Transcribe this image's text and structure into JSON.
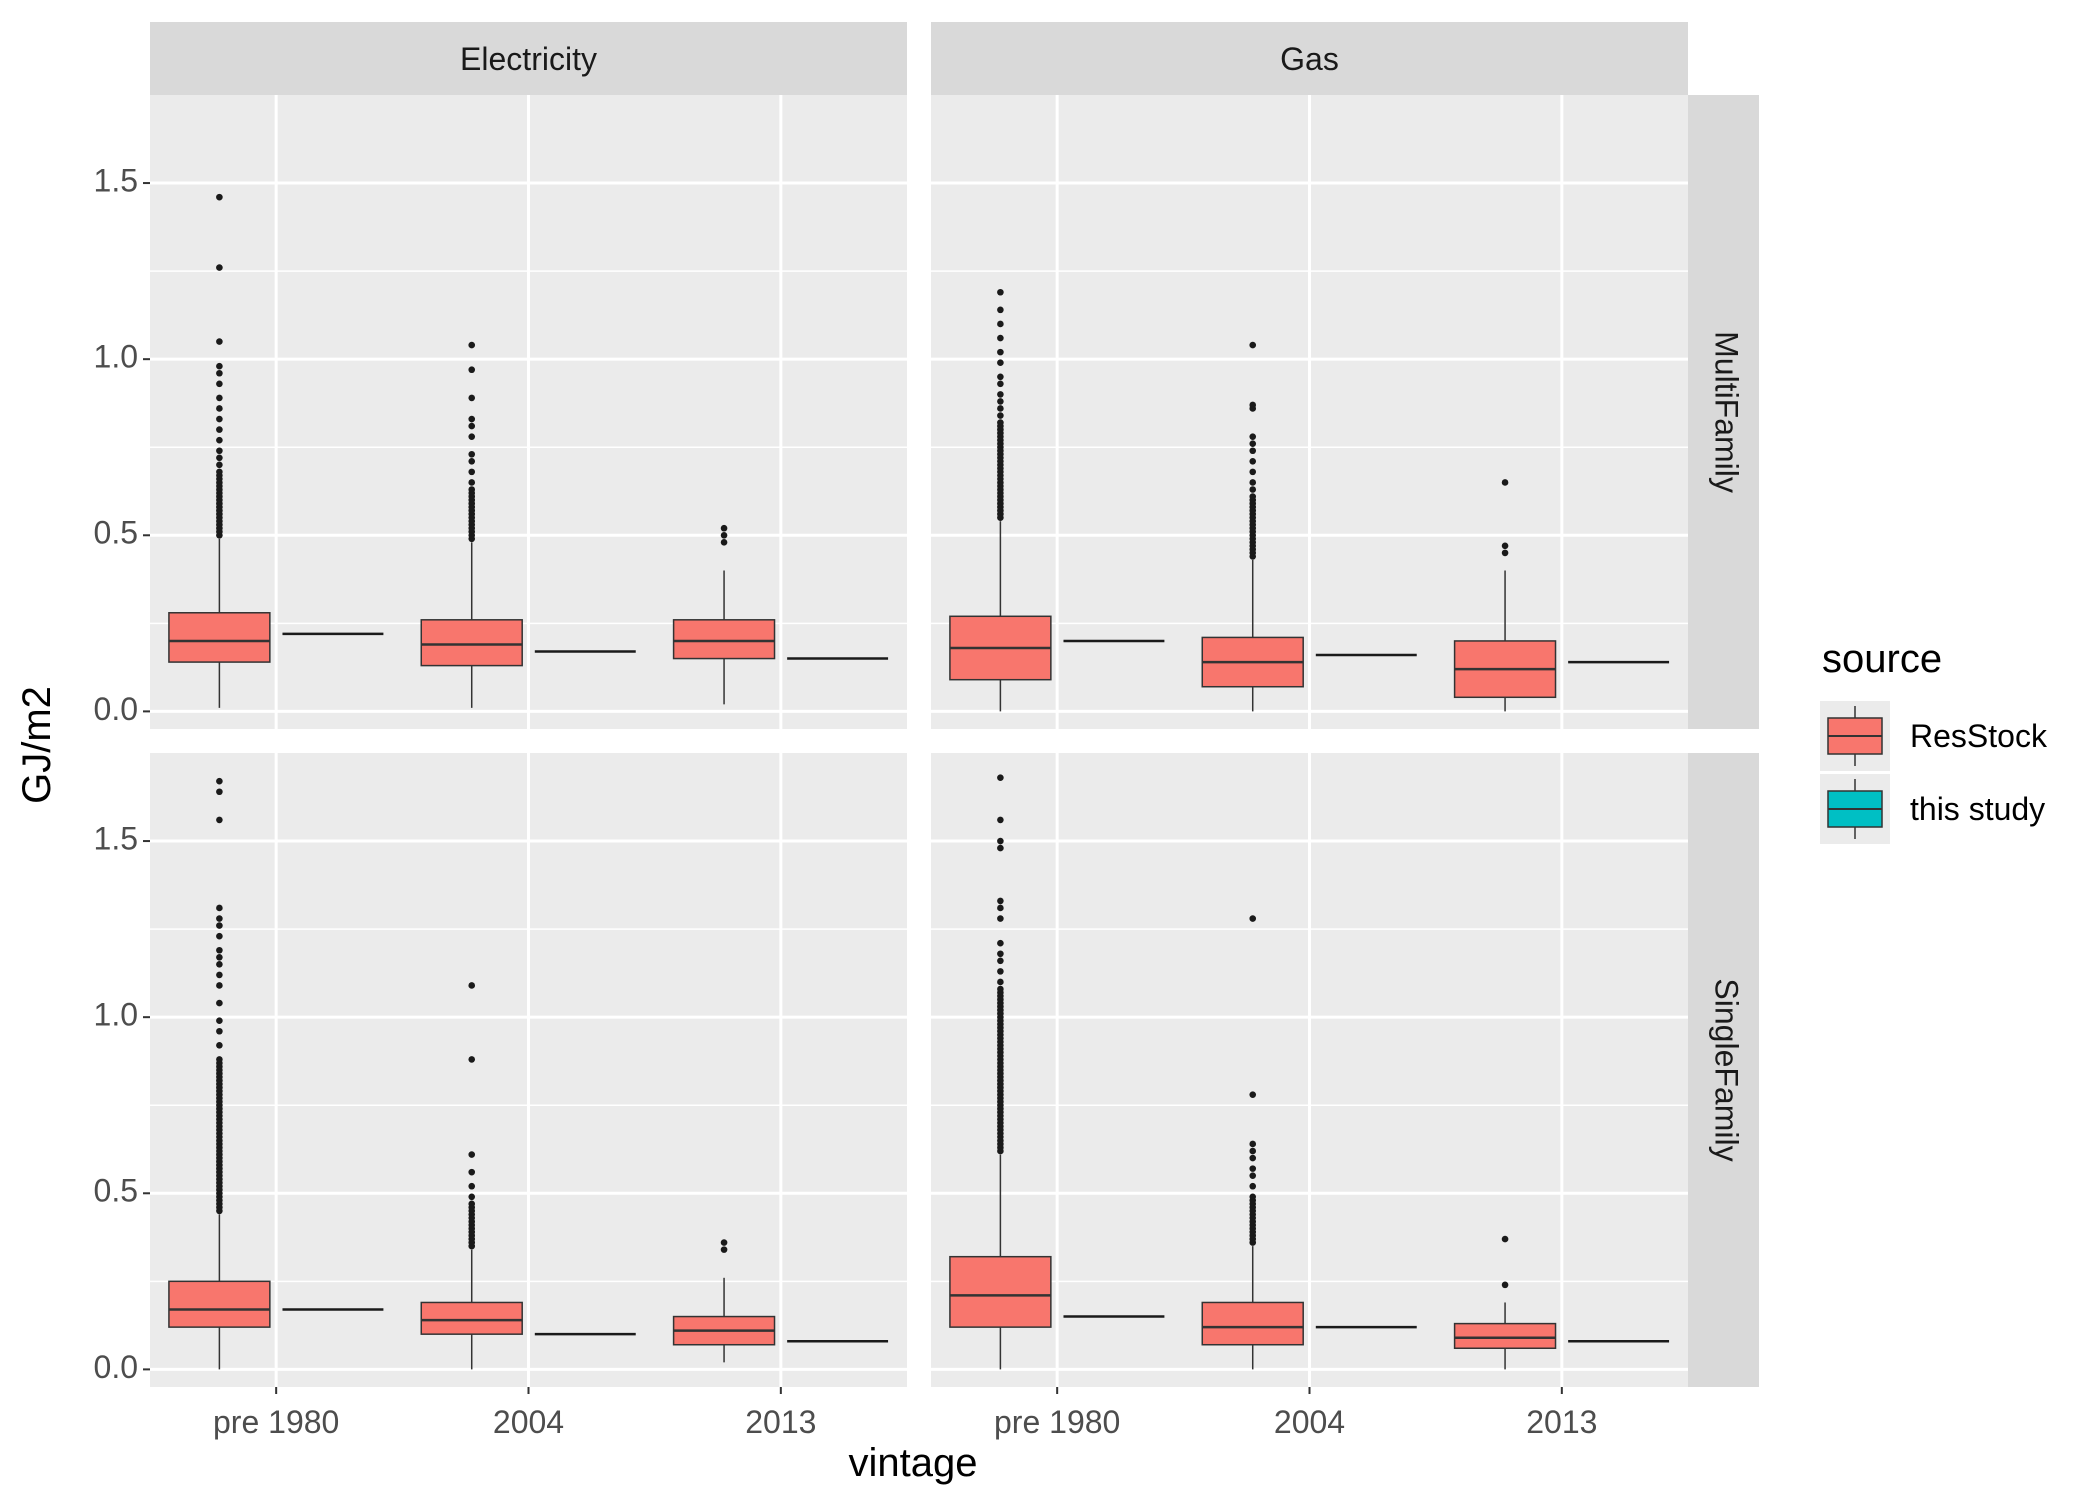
{
  "chart_data": {
    "type": "boxplot",
    "xlabel": "vintage",
    "ylabel": "GJ/m2",
    "ylim": [
      -0.05,
      1.75
    ],
    "yticks": [
      0.0,
      0.5,
      1.0,
      1.5
    ],
    "ytick_labels": [
      "0.0",
      "0.5",
      "1.0",
      "1.5"
    ],
    "categories": [
      "pre 1980",
      "2004",
      "2013"
    ],
    "facet_cols": [
      "Electricity",
      "Gas"
    ],
    "facet_rows": [
      "MultiFamily",
      "SingleFamily"
    ],
    "grid": true,
    "legend": {
      "title": "source",
      "position": "right",
      "entries": [
        {
          "label": "ResStock",
          "color": "#F8766D"
        },
        {
          "label": "this study",
          "color": "#00BFC4"
        }
      ]
    },
    "series": [
      {
        "name": "ResStock",
        "color": "#F8766D"
      },
      {
        "name": "this study",
        "color": "#00BFC4"
      }
    ],
    "panels": [
      {
        "col": "Electricity",
        "row": "MultiFamily",
        "resstock": [
          {
            "category": "pre 1980",
            "lower": 0.01,
            "q1": 0.14,
            "median": 0.2,
            "q3": 0.28,
            "upper": 0.49,
            "outliers": [
              0.5,
              0.51,
              0.52,
              0.53,
              0.54,
              0.55,
              0.56,
              0.57,
              0.58,
              0.59,
              0.6,
              0.61,
              0.62,
              0.63,
              0.64,
              0.65,
              0.66,
              0.67,
              0.68,
              0.7,
              0.72,
              0.74,
              0.77,
              0.8,
              0.83,
              0.86,
              0.89,
              0.93,
              0.96,
              0.98,
              1.05,
              1.26,
              1.46
            ]
          },
          {
            "category": "2004",
            "lower": 0.01,
            "q1": 0.13,
            "median": 0.19,
            "q3": 0.26,
            "upper": 0.48,
            "outliers": [
              0.49,
              0.5,
              0.51,
              0.52,
              0.53,
              0.54,
              0.55,
              0.56,
              0.57,
              0.58,
              0.59,
              0.6,
              0.61,
              0.62,
              0.63,
              0.65,
              0.68,
              0.71,
              0.73,
              0.78,
              0.81,
              0.83,
              0.89,
              0.97,
              1.04
            ]
          },
          {
            "category": "2013",
            "lower": 0.02,
            "q1": 0.15,
            "median": 0.2,
            "q3": 0.26,
            "upper": 0.4,
            "outliers": [
              0.48,
              0.5,
              0.52
            ]
          }
        ],
        "this_study": [
          {
            "category": "pre 1980",
            "value": 0.22
          },
          {
            "category": "2004",
            "value": 0.17
          },
          {
            "category": "2013",
            "value": 0.15
          }
        ]
      },
      {
        "col": "Gas",
        "row": "MultiFamily",
        "resstock": [
          {
            "category": "pre 1980",
            "lower": 0.0,
            "q1": 0.09,
            "median": 0.18,
            "q3": 0.27,
            "upper": 0.54,
            "outliers": [
              0.55,
              0.56,
              0.57,
              0.58,
              0.59,
              0.6,
              0.61,
              0.62,
              0.63,
              0.64,
              0.65,
              0.66,
              0.67,
              0.68,
              0.69,
              0.7,
              0.71,
              0.72,
              0.73,
              0.74,
              0.75,
              0.76,
              0.77,
              0.78,
              0.79,
              0.8,
              0.81,
              0.82,
              0.84,
              0.86,
              0.88,
              0.9,
              0.93,
              0.95,
              0.99,
              1.02,
              1.06,
              1.1,
              1.14,
              1.19
            ]
          },
          {
            "category": "2004",
            "lower": 0.0,
            "q1": 0.07,
            "median": 0.14,
            "q3": 0.21,
            "upper": 0.43,
            "outliers": [
              0.44,
              0.45,
              0.46,
              0.47,
              0.48,
              0.49,
              0.5,
              0.51,
              0.52,
              0.53,
              0.54,
              0.55,
              0.56,
              0.57,
              0.58,
              0.59,
              0.6,
              0.61,
              0.63,
              0.65,
              0.68,
              0.71,
              0.74,
              0.76,
              0.78,
              0.86,
              0.87,
              1.04
            ]
          },
          {
            "category": "2013",
            "lower": 0.0,
            "q1": 0.04,
            "median": 0.12,
            "q3": 0.2,
            "upper": 0.4,
            "outliers": [
              0.45,
              0.47,
              0.65
            ]
          }
        ],
        "this_study": [
          {
            "category": "pre 1980",
            "value": 0.2
          },
          {
            "category": "2004",
            "value": 0.16
          },
          {
            "category": "2013",
            "value": 0.14
          }
        ]
      },
      {
        "col": "Electricity",
        "row": "SingleFamily",
        "resstock": [
          {
            "category": "pre 1980",
            "lower": 0.0,
            "q1": 0.12,
            "median": 0.17,
            "q3": 0.25,
            "upper": 0.44,
            "outliers": [
              0.45,
              0.46,
              0.47,
              0.48,
              0.49,
              0.5,
              0.51,
              0.52,
              0.53,
              0.54,
              0.55,
              0.56,
              0.57,
              0.58,
              0.59,
              0.6,
              0.61,
              0.62,
              0.63,
              0.64,
              0.65,
              0.66,
              0.67,
              0.68,
              0.69,
              0.7,
              0.71,
              0.72,
              0.73,
              0.74,
              0.75,
              0.76,
              0.77,
              0.78,
              0.79,
              0.8,
              0.81,
              0.82,
              0.83,
              0.84,
              0.85,
              0.86,
              0.87,
              0.88,
              0.92,
              0.96,
              0.99,
              1.04,
              1.09,
              1.12,
              1.15,
              1.17,
              1.19,
              1.23,
              1.26,
              1.28,
              1.31,
              1.56,
              1.64,
              1.67
            ]
          },
          {
            "category": "2004",
            "lower": 0.0,
            "q1": 0.1,
            "median": 0.14,
            "q3": 0.19,
            "upper": 0.34,
            "outliers": [
              0.35,
              0.36,
              0.37,
              0.38,
              0.39,
              0.4,
              0.41,
              0.42,
              0.43,
              0.44,
              0.45,
              0.46,
              0.47,
              0.49,
              0.52,
              0.56,
              0.61,
              0.88,
              1.09
            ]
          },
          {
            "category": "2013",
            "lower": 0.02,
            "q1": 0.07,
            "median": 0.11,
            "q3": 0.15,
            "upper": 0.26,
            "outliers": [
              0.34,
              0.36
            ]
          }
        ],
        "this_study": [
          {
            "category": "pre 1980",
            "value": 0.17
          },
          {
            "category": "2004",
            "value": 0.1
          },
          {
            "category": "2013",
            "value": 0.08
          }
        ]
      },
      {
        "col": "Gas",
        "row": "SingleFamily",
        "resstock": [
          {
            "category": "pre 1980",
            "lower": 0.0,
            "q1": 0.12,
            "median": 0.21,
            "q3": 0.32,
            "upper": 0.61,
            "outliers": [
              0.62,
              0.63,
              0.64,
              0.65,
              0.66,
              0.67,
              0.68,
              0.69,
              0.7,
              0.71,
              0.72,
              0.73,
              0.74,
              0.75,
              0.76,
              0.77,
              0.78,
              0.79,
              0.8,
              0.81,
              0.82,
              0.83,
              0.84,
              0.85,
              0.86,
              0.87,
              0.88,
              0.89,
              0.9,
              0.91,
              0.92,
              0.93,
              0.94,
              0.95,
              0.96,
              0.97,
              0.98,
              0.99,
              1.0,
              1.01,
              1.02,
              1.03,
              1.04,
              1.05,
              1.06,
              1.07,
              1.08,
              1.1,
              1.13,
              1.16,
              1.18,
              1.21,
              1.28,
              1.31,
              1.33,
              1.48,
              1.5,
              1.56,
              1.68
            ]
          },
          {
            "category": "2004",
            "lower": 0.0,
            "q1": 0.07,
            "median": 0.12,
            "q3": 0.19,
            "upper": 0.35,
            "outliers": [
              0.36,
              0.37,
              0.38,
              0.39,
              0.4,
              0.41,
              0.42,
              0.43,
              0.44,
              0.45,
              0.46,
              0.47,
              0.48,
              0.49,
              0.52,
              0.55,
              0.57,
              0.6,
              0.62,
              0.64,
              0.78,
              1.28
            ]
          },
          {
            "category": "2013",
            "lower": 0.0,
            "q1": 0.06,
            "median": 0.09,
            "q3": 0.13,
            "upper": 0.19,
            "outliers": [
              0.24,
              0.37
            ]
          }
        ],
        "this_study": [
          {
            "category": "pre 1980",
            "value": 0.15
          },
          {
            "category": "2004",
            "value": 0.12
          },
          {
            "category": "2013",
            "value": 0.08
          }
        ]
      }
    ]
  }
}
